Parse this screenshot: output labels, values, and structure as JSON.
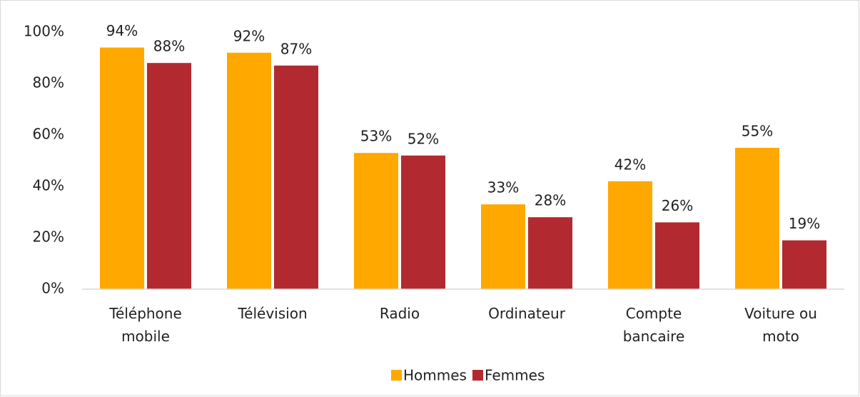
{
  "chart_data": {
    "type": "bar",
    "categories": [
      "Téléphone\nmobile",
      "Télévision",
      "Radio",
      "Ordinateur",
      "Compte\nbancaire",
      "Voiture ou\nmoto"
    ],
    "series": [
      {
        "name": "Hommes",
        "color": "#ffa800",
        "values": [
          94,
          92,
          53,
          33,
          42,
          55
        ],
        "value_labels": [
          "94%",
          "92%",
          "53%",
          "33%",
          "42%",
          "55%"
        ]
      },
      {
        "name": "Femmes",
        "color": "#b22a2f",
        "values": [
          88,
          87,
          52,
          28,
          26,
          19
        ],
        "value_labels": [
          "88%",
          "87%",
          "52%",
          "28%",
          "26%",
          "19%"
        ]
      }
    ],
    "ylim": [
      0,
      100
    ],
    "yticks": [
      {
        "value": 0,
        "label": "0%"
      },
      {
        "value": 20,
        "label": "20%"
      },
      {
        "value": 40,
        "label": "40%"
      },
      {
        "value": 60,
        "label": "60%"
      },
      {
        "value": 80,
        "label": "80%"
      },
      {
        "value": 100,
        "label": "100%"
      }
    ],
    "grid": false
  }
}
